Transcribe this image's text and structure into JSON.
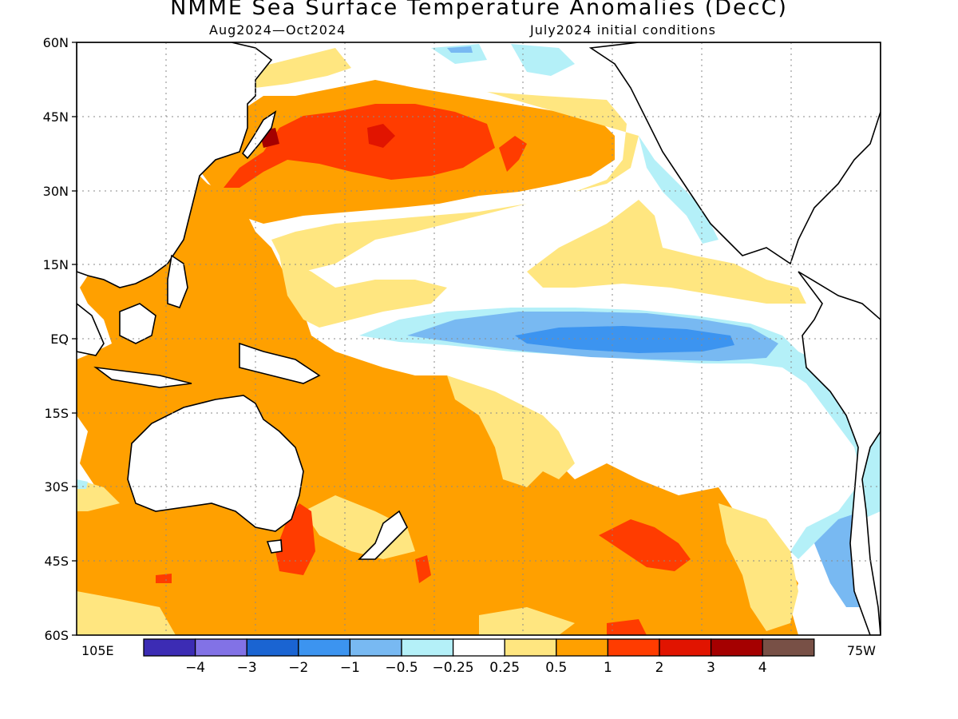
{
  "title": "NMME Sea Surface Temperature Anomalies (DecC)",
  "subtitle_left": "Aug2024—Oct2024",
  "subtitle_right": "July2024 initial conditions",
  "lat_labels": [
    "60N",
    "45N",
    "30N",
    "15N",
    "EQ",
    "15S",
    "30S",
    "45S",
    "60S"
  ],
  "lon_labels": [
    "105E",
    "75W"
  ],
  "colorbar": {
    "colors": [
      "#3c2cb4",
      "#8272e6",
      "#1a64d2",
      "#3c94f0",
      "#78b9f2",
      "#b4f0f8",
      "#ffffff",
      "#ffe680",
      "#ffa000",
      "#ff3c00",
      "#e11400",
      "#a50000",
      "#785046"
    ],
    "labels": [
      "-4",
      "-3",
      "-2",
      "-1",
      "-0.5",
      "-0.25",
      "0.25",
      "0.5",
      "1",
      "2",
      "3",
      "4"
    ]
  }
}
